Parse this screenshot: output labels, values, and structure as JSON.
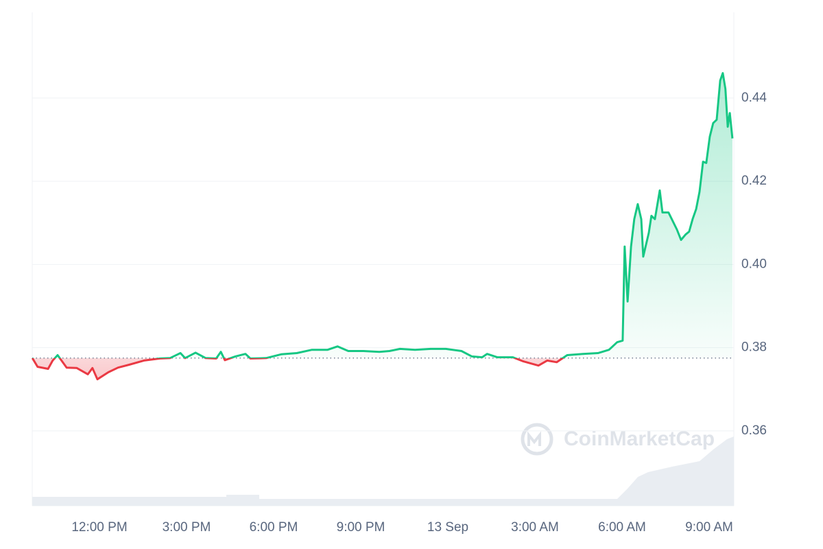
{
  "chart_data": {
    "type": "line",
    "watermark": "CoinMarketCap",
    "baseline": 0.3775,
    "up_color": "#16c784",
    "down_color": "#ea3943",
    "xlim": [
      9.685,
      33.85
    ],
    "ylim": [
      0.342,
      0.4606
    ],
    "xticks": [
      {
        "value": 12,
        "label": "12:00 PM"
      },
      {
        "value": 15,
        "label": "3:00 PM"
      },
      {
        "value": 18,
        "label": "6:00 PM"
      },
      {
        "value": 21,
        "label": "9:00 PM"
      },
      {
        "value": 24,
        "label": "13 Sep"
      },
      {
        "value": 27,
        "label": "3:00 AM"
      },
      {
        "value": 30,
        "label": "6:00 AM"
      },
      {
        "value": 33,
        "label": "9:00 AM"
      }
    ],
    "yticks": [
      0.36,
      0.38,
      {
        "value": 0.4,
        "label": "0.40"
      },
      0.42,
      0.44
    ],
    "grid": true,
    "x": [
      9.69,
      9.87,
      10.23,
      10.39,
      10.56,
      10.87,
      11.22,
      11.6,
      11.76,
      11.93,
      12.31,
      12.64,
      13.02,
      13.53,
      14.08,
      14.43,
      14.79,
      14.95,
      15.31,
      15.66,
      16.02,
      16.18,
      16.32,
      16.68,
      17.03,
      17.2,
      17.74,
      18.26,
      18.8,
      19.32,
      19.86,
      20.2,
      20.57,
      21.09,
      21.64,
      21.99,
      22.35,
      22.87,
      23.41,
      23.93,
      24.47,
      24.83,
      25.18,
      25.35,
      25.7,
      26.24,
      26.6,
      27.12,
      27.42,
      27.75,
      28.11,
      28.65,
      29.17,
      29.55,
      29.83,
      30.02,
      30.09,
      30.19,
      30.31,
      30.42,
      30.54,
      30.66,
      30.73,
      30.92,
      31.01,
      31.13,
      31.3,
      31.39,
      31.6,
      31.89,
      32.03,
      32.19,
      32.31,
      32.43,
      32.55,
      32.67,
      32.79,
      32.9,
      33.02,
      33.14,
      33.26,
      33.38,
      33.47,
      33.56,
      33.64,
      33.71,
      33.8
    ],
    "values": [
      0.3775,
      0.3754,
      0.3749,
      0.3769,
      0.3782,
      0.3752,
      0.3751,
      0.3736,
      0.3751,
      0.3724,
      0.3741,
      0.3752,
      0.3759,
      0.3769,
      0.3774,
      0.3775,
      0.3787,
      0.3775,
      0.3788,
      0.3775,
      0.3774,
      0.379,
      0.377,
      0.3779,
      0.3785,
      0.3774,
      0.3775,
      0.3784,
      0.3787,
      0.3795,
      0.3795,
      0.3803,
      0.3792,
      0.3792,
      0.379,
      0.3792,
      0.3797,
      0.3795,
      0.3797,
      0.3797,
      0.3792,
      0.3779,
      0.3777,
      0.3785,
      0.3777,
      0.3777,
      0.3767,
      0.3757,
      0.3769,
      0.3765,
      0.3782,
      0.3785,
      0.3787,
      0.3795,
      0.3813,
      0.3817,
      0.4043,
      0.3911,
      0.4043,
      0.4109,
      0.4145,
      0.4109,
      0.4019,
      0.4076,
      0.4117,
      0.4109,
      0.4178,
      0.4125,
      0.4125,
      0.4084,
      0.4059,
      0.4072,
      0.4079,
      0.4109,
      0.4133,
      0.4175,
      0.4247,
      0.4244,
      0.4307,
      0.434,
      0.4348,
      0.4442,
      0.446,
      0.4422,
      0.4331,
      0.4364,
      0.4303
    ]
  }
}
